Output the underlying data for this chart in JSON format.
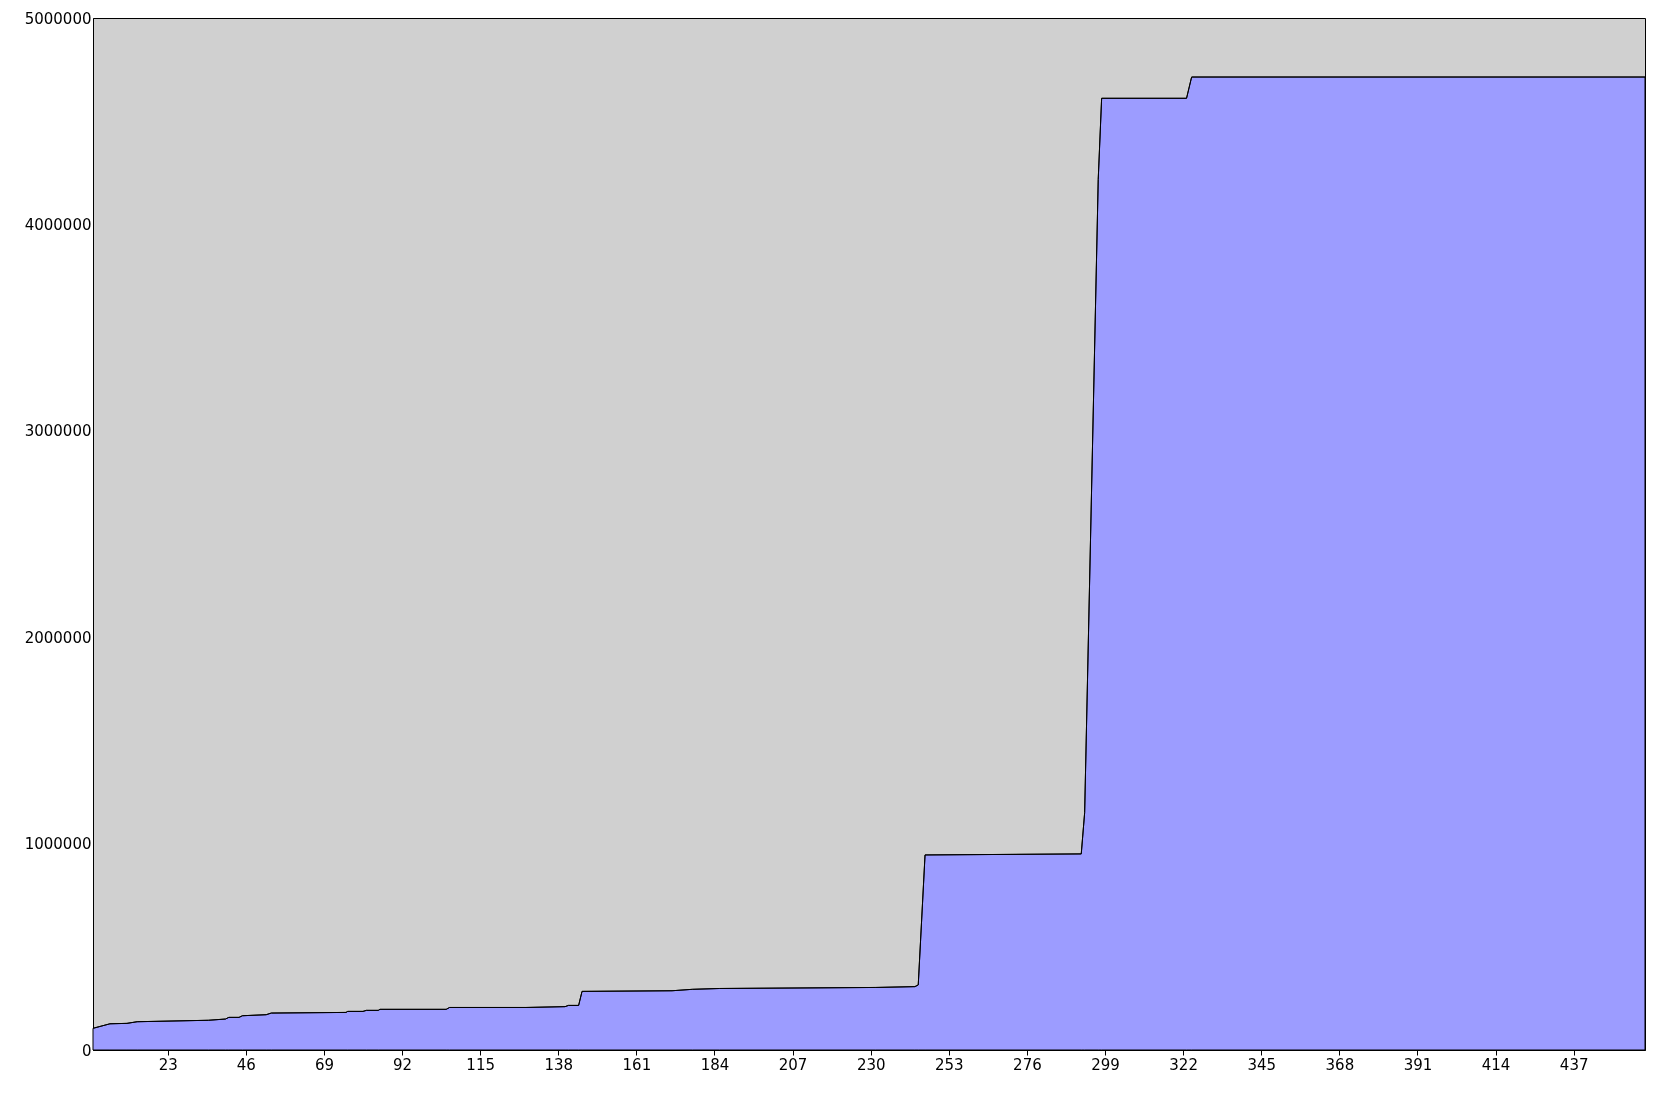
{
  "chart_data": {
    "type": "area",
    "x": [
      1,
      6,
      11,
      14,
      35,
      40,
      41,
      44,
      45,
      52,
      53.5,
      75.5,
      76,
      80.5,
      81.5,
      85,
      85.5,
      105,
      106,
      128.5,
      140,
      141,
      144,
      145,
      171.5,
      177.5,
      185.5,
      231.5,
      243,
      244,
      246,
      292,
      293,
      297,
      298,
      323,
      324.5,
      458
    ],
    "series": [
      {
        "color": "#9c9cff",
        "values": [
          105000,
          127000,
          129000,
          137000,
          144000,
          150000,
          158000,
          158000,
          166000,
          171000,
          179000,
          182000,
          187000,
          187000,
          192000,
          192000,
          197000,
          197000,
          206000,
          206000,
          210000,
          216000,
          216000,
          284000,
          287000,
          294000,
          298000,
          303000,
          307000,
          315000,
          945000,
          950000,
          1150000,
          4218000,
          4611000,
          4611000,
          4714000,
          4714000
        ]
      }
    ],
    "xlim": [
      1,
      458
    ],
    "ylim": [
      0,
      5000000
    ],
    "xticks": [
      23,
      46,
      69,
      92,
      115,
      138,
      161,
      184,
      207,
      230,
      253,
      276,
      299,
      322,
      345,
      368,
      391,
      414,
      437
    ],
    "yticks": [
      0,
      1000000,
      2000000,
      3000000,
      4000000,
      5000000
    ],
    "grid": false
  }
}
